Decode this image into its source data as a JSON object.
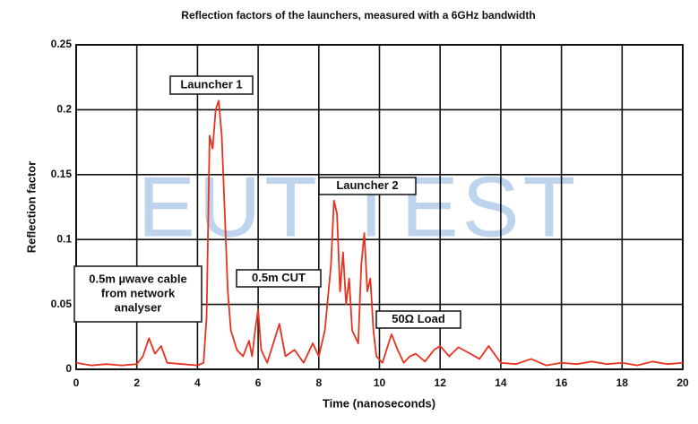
{
  "chart_data": {
    "type": "line",
    "title": "Reflection factors of the launchers, measured with a 6GHz bandwidth",
    "x_label": "Time (nanoseconds)",
    "y_label": "Reflection factor",
    "watermark": "EUT TEST",
    "xlim": [
      0,
      20
    ],
    "ylim": [
      0,
      0.25
    ],
    "xticks": [
      0,
      2,
      4,
      6,
      8,
      10,
      12,
      14,
      16,
      18,
      20
    ],
    "yticks": [
      0,
      0.05,
      0.1,
      0.15,
      0.2,
      0.25
    ],
    "grid": true,
    "x": [
      0,
      0.5,
      1,
      1.5,
      2,
      2.2,
      2.4,
      2.6,
      2.8,
      3,
      3.5,
      4,
      4.2,
      4.3,
      4.4,
      4.5,
      4.6,
      4.7,
      4.8,
      4.9,
      5.0,
      5.1,
      5.3,
      5.5,
      5.7,
      5.8,
      5.9,
      6.0,
      6.1,
      6.3,
      6.5,
      6.7,
      6.9,
      7.2,
      7.5,
      7.8,
      8.0,
      8.2,
      8.4,
      8.5,
      8.6,
      8.7,
      8.8,
      8.9,
      9.0,
      9.1,
      9.3,
      9.4,
      9.5,
      9.6,
      9.7,
      9.8,
      9.9,
      10.1,
      10.3,
      10.4,
      10.6,
      10.8,
      11.0,
      11.2,
      11.5,
      11.8,
      12.0,
      12.3,
      12.6,
      13.0,
      13.3,
      13.6,
      14.0,
      14.5,
      15.0,
      15.5,
      16,
      16.5,
      17,
      17.5,
      18,
      18.5,
      19,
      19.5,
      20
    ],
    "series": [
      {
        "color": "#e8321e",
        "values": [
          0.005,
          0.003,
          0.004,
          0.003,
          0.004,
          0.01,
          0.024,
          0.012,
          0.018,
          0.005,
          0.004,
          0.003,
          0.005,
          0.04,
          0.18,
          0.17,
          0.2,
          0.207,
          0.18,
          0.12,
          0.06,
          0.03,
          0.015,
          0.01,
          0.022,
          0.01,
          0.03,
          0.046,
          0.015,
          0.005,
          0.02,
          0.035,
          0.01,
          0.015,
          0.005,
          0.02,
          0.01,
          0.03,
          0.08,
          0.13,
          0.12,
          0.06,
          0.09,
          0.05,
          0.07,
          0.03,
          0.02,
          0.08,
          0.105,
          0.06,
          0.07,
          0.03,
          0.01,
          0.005,
          0.02,
          0.027,
          0.015,
          0.005,
          0.01,
          0.012,
          0.006,
          0.015,
          0.018,
          0.01,
          0.017,
          0.012,
          0.008,
          0.018,
          0.005,
          0.004,
          0.008,
          0.003,
          0.005,
          0.004,
          0.006,
          0.004,
          0.005,
          0.003,
          0.006,
          0.004,
          0.005
        ]
      }
    ],
    "annotations": [
      {
        "lines": [
          "0.5m µwave cable",
          "from network",
          "analyser"
        ]
      },
      {
        "lines": [
          "Launcher 1"
        ]
      },
      {
        "lines": [
          "0.5m CUT"
        ]
      },
      {
        "lines": [
          "Launcher 2"
        ]
      },
      {
        "lines": [
          "50Ω Load"
        ]
      }
    ]
  }
}
